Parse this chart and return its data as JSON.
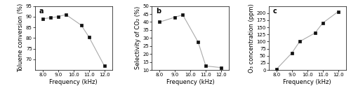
{
  "a": {
    "x": [
      8.0,
      8.5,
      9.0,
      9.5,
      10.5,
      11.0,
      12.0
    ],
    "y": [
      89.0,
      89.5,
      90.0,
      91.0,
      86.0,
      80.5,
      67.0
    ],
    "xlabel": "Frequency (kHz)",
    "ylabel": "Toluene conversion (%)",
    "ylim": [
      65,
      95
    ],
    "yticks": [
      70,
      75,
      80,
      85,
      90,
      95
    ],
    "xlim": [
      7.5,
      12.5
    ],
    "xticks": [
      8.0,
      9.0,
      10.0,
      11.0,
      12.0
    ],
    "xticklabels": [
      "8.0",
      "9.0",
      "10.0",
      "11.0",
      "12.0"
    ],
    "label": "a"
  },
  "b": {
    "x": [
      8.0,
      9.0,
      9.5,
      10.5,
      11.0,
      12.0
    ],
    "y": [
      40.0,
      43.0,
      44.5,
      27.5,
      12.5,
      11.5
    ],
    "xlabel": "Frequency (kHz)",
    "ylabel": "Selectivity of CO₂ (%)",
    "ylim": [
      10,
      50
    ],
    "yticks": [
      10,
      15,
      20,
      25,
      30,
      35,
      40,
      45,
      50
    ],
    "xlim": [
      7.5,
      12.5
    ],
    "xticks": [
      8.0,
      9.0,
      10.0,
      11.0,
      12.0
    ],
    "xticklabels": [
      "8.0",
      "9.0",
      "10.0",
      "11.0",
      "12.0"
    ],
    "label": "b"
  },
  "c": {
    "x": [
      8.0,
      9.0,
      9.5,
      10.5,
      11.0,
      12.0
    ],
    "y": [
      3.0,
      60.0,
      100.0,
      130.0,
      165.0,
      205.0
    ],
    "xlabel": "Frequency (kHz)",
    "ylabel": "O₃ concentration (ppm)",
    "ylim": [
      0,
      225
    ],
    "yticks": [
      0,
      25,
      50,
      75,
      100,
      125,
      150,
      175,
      200
    ],
    "xlim": [
      7.5,
      12.5
    ],
    "xticks": [
      8.0,
      9.0,
      10.0,
      11.0,
      12.0
    ],
    "xticklabels": [
      "8.0",
      "9.0",
      "10.0",
      "11.0",
      "12.0"
    ],
    "label": "c"
  },
  "line_color": "#aaaaaa",
  "marker": "s",
  "marker_color": "#111111",
  "marker_size": 3,
  "linewidth": 0.8,
  "label_fontsize": 6,
  "tick_fontsize": 5,
  "panel_label_fontsize": 7
}
